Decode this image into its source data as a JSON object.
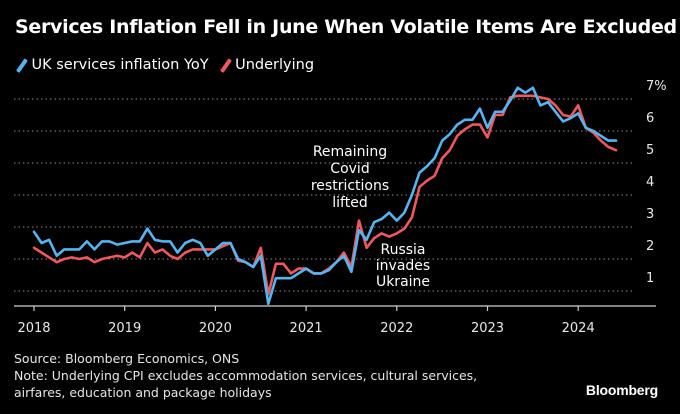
{
  "title": "Services Inflation Fell in June When Volatile Items Are Excluded",
  "legend": [
    {
      "label": "UK services inflation YoY",
      "color": "#56b4f0",
      "icon": "slash-line-icon"
    },
    {
      "label": "Underlying",
      "color": "#f0585e",
      "icon": "slash-line-icon"
    }
  ],
  "footer": {
    "source": "Source: Bloomberg Economics, ONS",
    "note_line1": "Note: Underlying CPI excludes accommodation services, cultural services,",
    "note_line2": "airfares, education and package holidays"
  },
  "brand": "Bloomberg",
  "chart_data": {
    "type": "line",
    "title": "Services Inflation Fell in June When Volatile Items Are Excluded",
    "xlabel": "",
    "ylabel": "",
    "x_start": "2018-01",
    "x_frequency": "monthly",
    "x_ticks": [
      "2018",
      "2019",
      "2020",
      "2021",
      "2022",
      "2023",
      "2024"
    ],
    "y_ticks": [
      "1",
      "2",
      "3",
      "4",
      "5",
      "6",
      "7%"
    ],
    "y_tick_values": [
      1,
      2,
      3,
      4,
      5,
      6,
      7
    ],
    "ylim": [
      0.5,
      7.5
    ],
    "grid": "horizontal-dotted",
    "legend_position": "top-left",
    "y_axis_side": "right",
    "series": [
      {
        "name": "UK services inflation YoY",
        "color": "#56b4f0",
        "values": [
          2.85,
          2.5,
          2.6,
          2.1,
          2.3,
          2.3,
          2.3,
          2.55,
          2.3,
          2.55,
          2.55,
          2.45,
          2.5,
          2.55,
          2.55,
          2.95,
          2.6,
          2.55,
          2.55,
          2.2,
          2.5,
          2.6,
          2.5,
          2.1,
          2.3,
          2.5,
          2.5,
          2.0,
          1.9,
          1.75,
          2.1,
          0.6,
          1.4,
          1.4,
          1.4,
          1.55,
          1.7,
          1.55,
          1.55,
          1.65,
          1.9,
          2.1,
          1.6,
          2.9,
          2.6,
          3.15,
          3.25,
          3.45,
          3.2,
          3.45,
          4.0,
          4.7,
          4.9,
          5.15,
          5.7,
          5.9,
          6.2,
          6.35,
          6.35,
          6.7,
          6.1,
          6.6,
          6.6,
          6.95,
          7.35,
          7.2,
          7.35,
          6.8,
          6.9,
          6.6,
          6.3,
          6.4,
          6.55,
          6.1,
          6.0,
          5.85,
          5.7,
          5.7
        ]
      },
      {
        "name": "Underlying",
        "color": "#f0585e",
        "values": [
          2.35,
          2.2,
          2.05,
          1.9,
          2.0,
          2.05,
          2.0,
          2.05,
          1.9,
          2.0,
          2.05,
          2.1,
          2.05,
          2.2,
          2.05,
          2.5,
          2.2,
          2.3,
          2.1,
          2.0,
          2.2,
          2.3,
          2.3,
          2.3,
          2.3,
          2.4,
          2.5,
          1.95,
          1.9,
          1.75,
          2.35,
          0.9,
          1.85,
          1.85,
          1.55,
          1.7,
          1.7,
          1.55,
          1.55,
          1.7,
          1.9,
          2.2,
          1.75,
          3.2,
          2.35,
          2.65,
          2.8,
          2.7,
          2.8,
          2.95,
          3.3,
          4.25,
          4.45,
          4.6,
          5.15,
          5.4,
          5.85,
          6.05,
          6.2,
          6.2,
          5.8,
          6.5,
          6.5,
          7.05,
          7.1,
          7.1,
          7.1,
          7.05,
          7.0,
          6.8,
          6.5,
          6.45,
          6.8,
          6.1,
          5.95,
          5.7,
          5.5,
          5.4
        ]
      }
    ],
    "annotations": [
      {
        "lines": [
          "Remaining",
          "Covid",
          "restrictions",
          "lifted"
        ],
        "at": "2021-07"
      },
      {
        "lines": [
          "Russia",
          "invades",
          "Ukraine"
        ],
        "at": "2022-02"
      }
    ]
  }
}
